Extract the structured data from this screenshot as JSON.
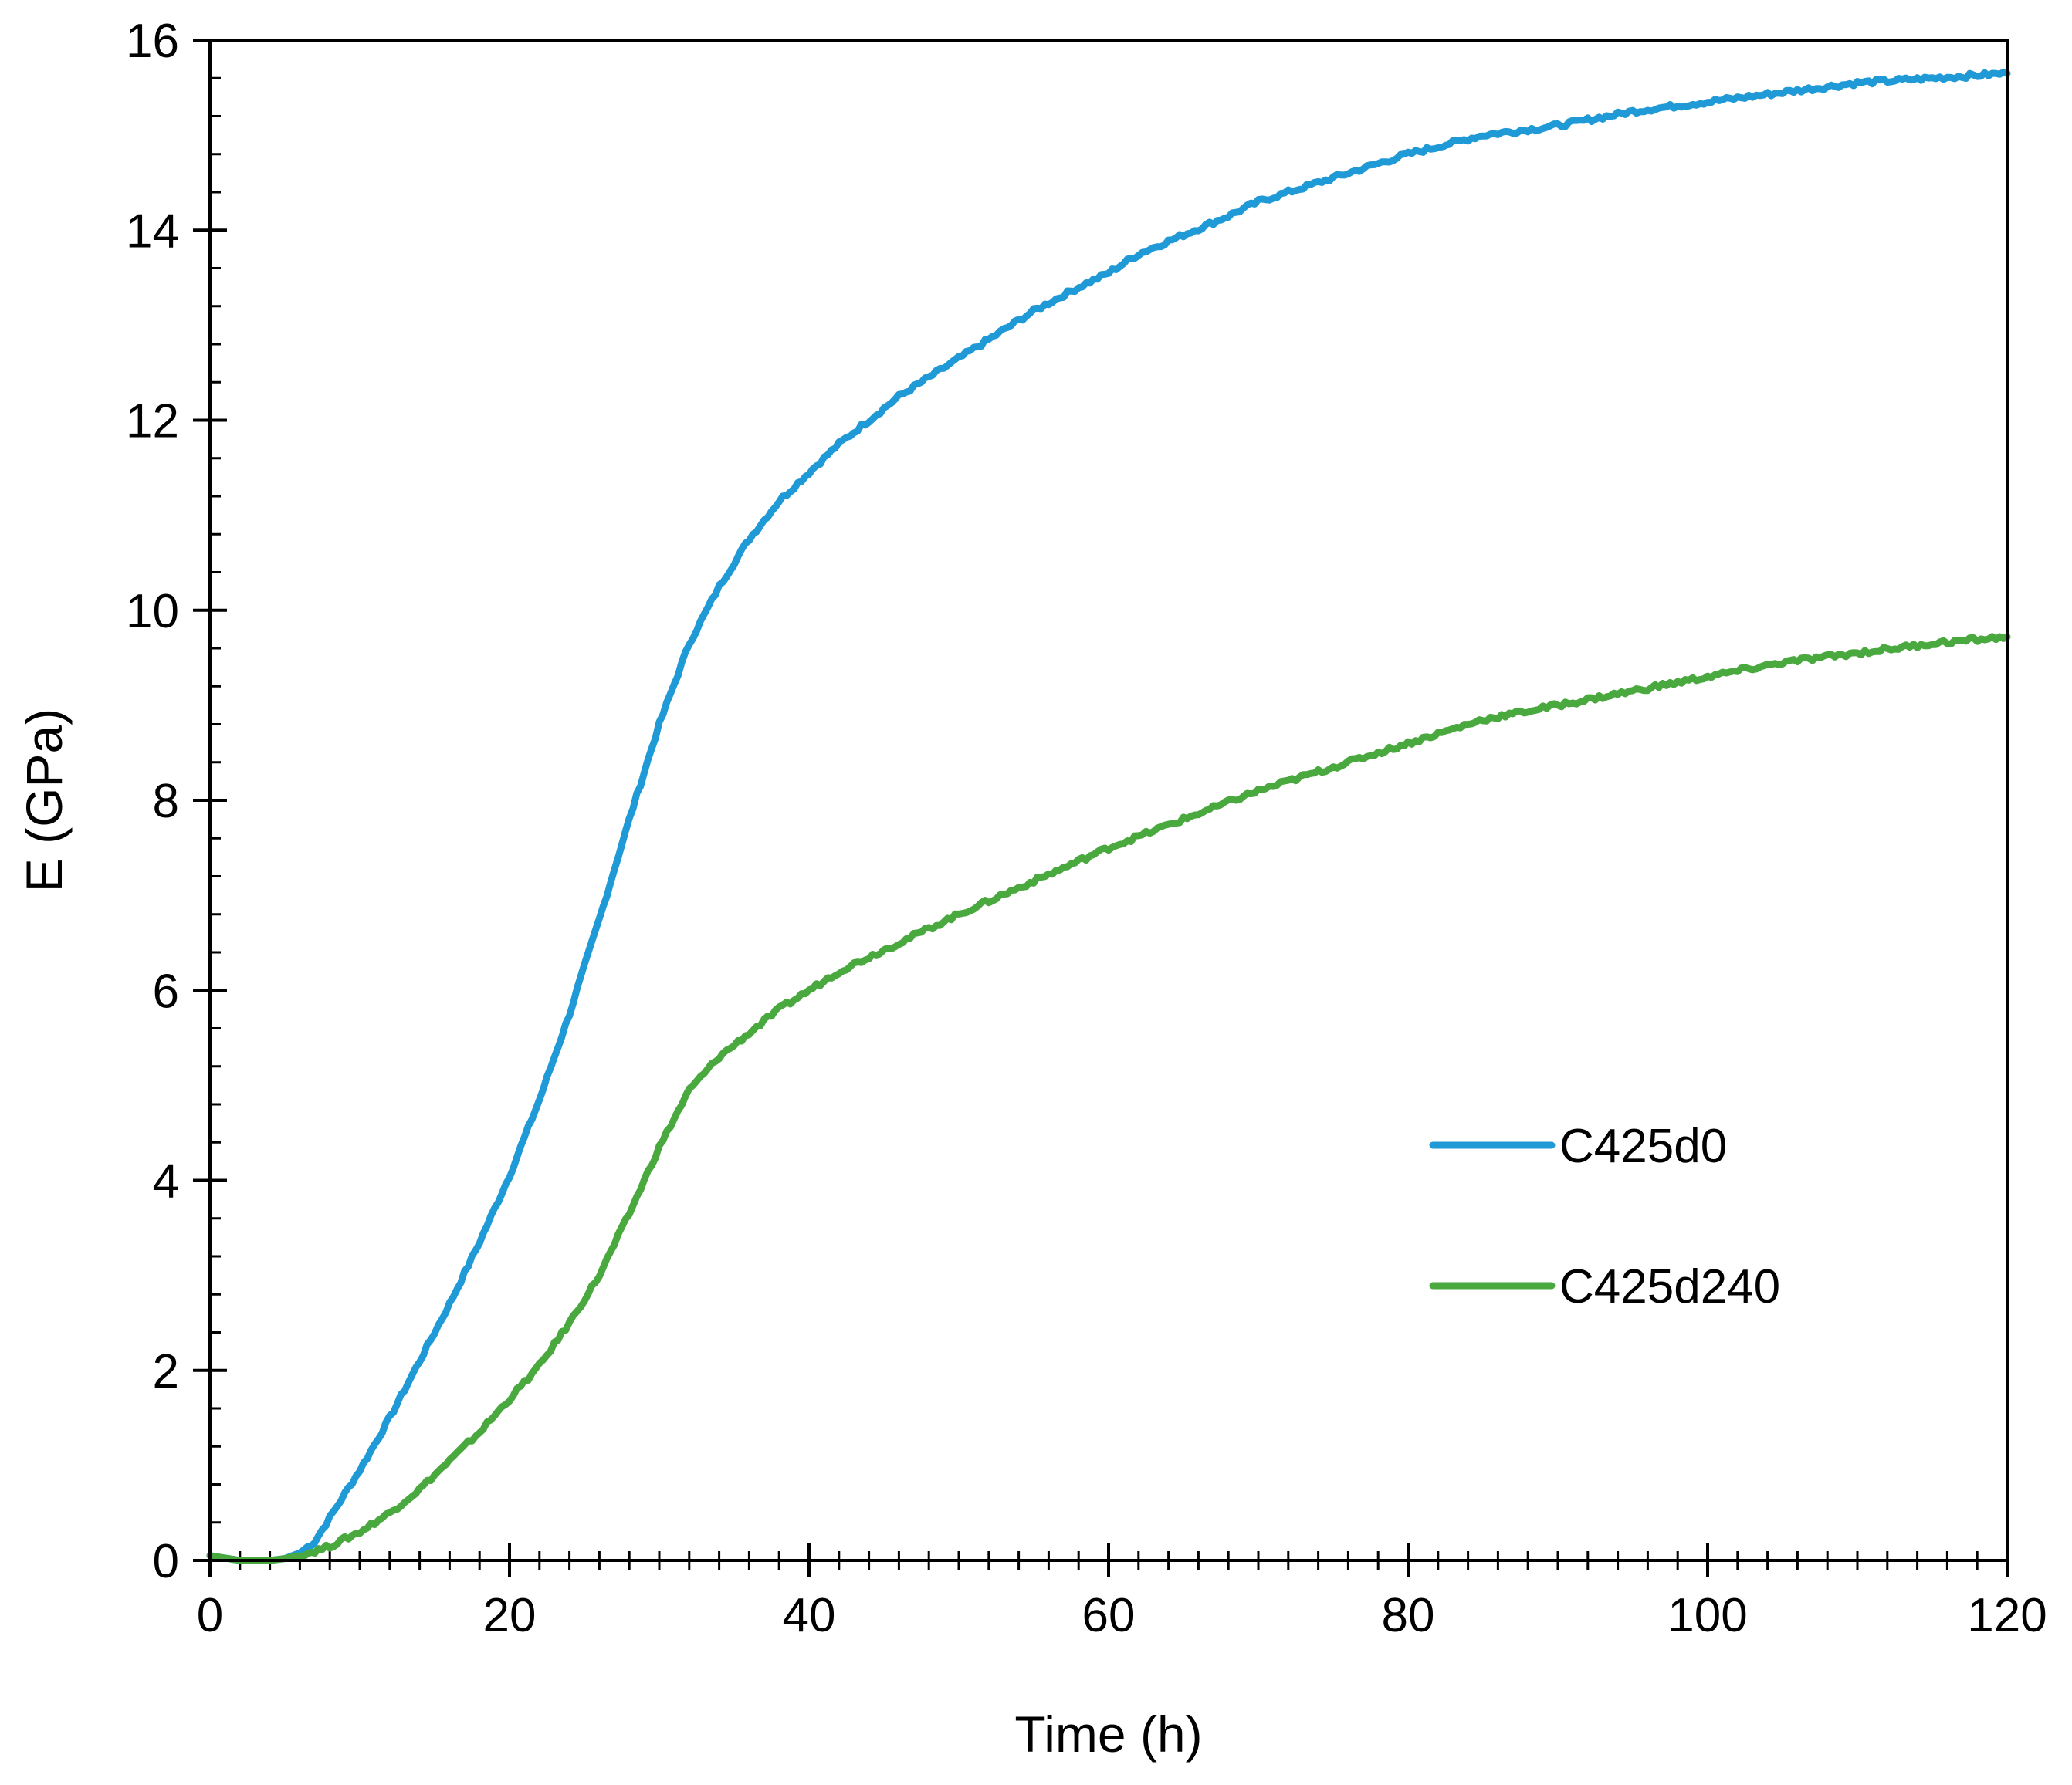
{
  "chart_data": {
    "type": "line",
    "title": "",
    "xlabel": "Time (h)",
    "ylabel": "E (GPa)",
    "xlim": [
      0,
      120
    ],
    "ylim": [
      0,
      16
    ],
    "x_ticks": [
      0,
      20,
      40,
      60,
      80,
      100,
      120
    ],
    "y_ticks": [
      0,
      2,
      4,
      6,
      8,
      10,
      12,
      14,
      16
    ],
    "x_minor_step": 2,
    "y_minor_step": 0.4,
    "grid": false,
    "legend_position": "center-right",
    "series": [
      {
        "name": "C425d0",
        "color": "#1f9ad6",
        "x": [
          0,
          2,
          4,
          5,
          6,
          7,
          8,
          10,
          12,
          14,
          16,
          18,
          20,
          22,
          24,
          26,
          28,
          30,
          32,
          34,
          36,
          38,
          40,
          42,
          44,
          46,
          48,
          50,
          52,
          55,
          58,
          60,
          62,
          65,
          68,
          70,
          72,
          75,
          78,
          80,
          85,
          90,
          95,
          100,
          105,
          110,
          115,
          120
        ],
        "y": [
          0.05,
          0.0,
          0.0,
          0.02,
          0.08,
          0.2,
          0.45,
          0.95,
          1.5,
          2.1,
          2.7,
          3.35,
          4.05,
          4.85,
          5.75,
          6.75,
          7.8,
          8.8,
          9.65,
          10.25,
          10.75,
          11.15,
          11.45,
          11.75,
          12.0,
          12.25,
          12.45,
          12.65,
          12.85,
          13.15,
          13.4,
          13.55,
          13.75,
          13.95,
          14.15,
          14.3,
          14.4,
          14.55,
          14.7,
          14.8,
          15.0,
          15.1,
          15.25,
          15.35,
          15.45,
          15.55,
          15.6,
          15.65
        ]
      },
      {
        "name": "C425d240",
        "color": "#4aa93e",
        "x": [
          0,
          2,
          4,
          5,
          6,
          8,
          10,
          12,
          14,
          16,
          18,
          20,
          22,
          24,
          26,
          28,
          30,
          32,
          34,
          36,
          38,
          40,
          42,
          44,
          46,
          48,
          50,
          55,
          60,
          65,
          70,
          75,
          80,
          85,
          90,
          95,
          100,
          105,
          110,
          115,
          120
        ],
        "y": [
          0.05,
          0.0,
          0.0,
          0.02,
          0.05,
          0.15,
          0.3,
          0.5,
          0.75,
          1.05,
          1.35,
          1.7,
          2.05,
          2.5,
          3.0,
          3.65,
          4.35,
          4.95,
          5.3,
          5.55,
          5.8,
          6.0,
          6.2,
          6.35,
          6.5,
          6.65,
          6.8,
          7.15,
          7.5,
          7.8,
          8.1,
          8.35,
          8.6,
          8.85,
          9.0,
          9.15,
          9.3,
          9.45,
          9.55,
          9.65,
          9.72
        ]
      }
    ]
  }
}
